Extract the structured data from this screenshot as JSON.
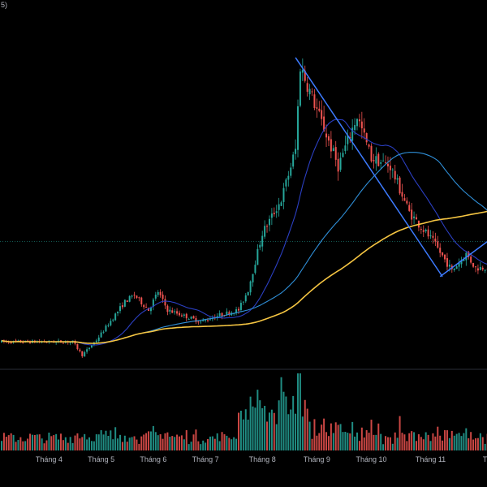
{
  "chart_data": {
    "type": "candlestick",
    "title": "",
    "corner_text": "5)",
    "x_tick_labels": [
      "Tháng 4",
      "Tháng 5",
      "Tháng 6",
      "Tháng 7",
      "Tháng 8",
      "Tháng 9",
      "Tháng 10",
      "Tháng 11",
      "Tháng"
    ],
    "grid": false,
    "colors": {
      "background": "#000000",
      "up": "#26a69a",
      "down": "#ef5350",
      "ma_short": "#2b3fc2",
      "ma_mid": "#2f8fd8",
      "ma_long": "#f5c542",
      "trendline": "#3d7bff",
      "dotted_level": "#26a69a",
      "axis_text": "#b2b5be"
    },
    "price_scale": "relative (values read off pixel grid, no price axis printed)",
    "price_segments": [
      {
        "from": 0,
        "to": 30,
        "start": 30,
        "end": 30
      },
      {
        "from": 30,
        "to": 34,
        "start": 30,
        "end": 14
      },
      {
        "from": 34,
        "to": 40,
        "start": 14,
        "end": 32
      },
      {
        "from": 40,
        "to": 52,
        "start": 32,
        "end": 78
      },
      {
        "from": 52,
        "to": 56,
        "start": 78,
        "end": 86
      },
      {
        "from": 56,
        "to": 62,
        "start": 86,
        "end": 68
      },
      {
        "from": 62,
        "to": 66,
        "start": 68,
        "end": 90
      },
      {
        "from": 66,
        "to": 70,
        "start": 90,
        "end": 68
      },
      {
        "from": 70,
        "to": 84,
        "start": 68,
        "end": 54
      },
      {
        "from": 84,
        "to": 92,
        "start": 54,
        "end": 62
      },
      {
        "from": 92,
        "to": 100,
        "start": 62,
        "end": 68
      },
      {
        "from": 100,
        "to": 104,
        "start": 68,
        "end": 92
      },
      {
        "from": 104,
        "to": 110,
        "start": 92,
        "end": 160
      },
      {
        "from": 110,
        "to": 118,
        "start": 160,
        "end": 200
      },
      {
        "from": 118,
        "to": 124,
        "start": 200,
        "end": 260
      },
      {
        "from": 124,
        "to": 126,
        "start": 260,
        "end": 360
      },
      {
        "from": 126,
        "to": 134,
        "start": 360,
        "end": 300
      },
      {
        "from": 134,
        "to": 142,
        "start": 300,
        "end": 240
      },
      {
        "from": 142,
        "to": 150,
        "start": 240,
        "end": 300
      },
      {
        "from": 150,
        "to": 156,
        "start": 300,
        "end": 250
      },
      {
        "from": 156,
        "to": 164,
        "start": 250,
        "end": 240
      },
      {
        "from": 164,
        "to": 172,
        "start": 240,
        "end": 185
      },
      {
        "from": 172,
        "to": 182,
        "start": 185,
        "end": 150
      },
      {
        "from": 182,
        "to": 190,
        "start": 150,
        "end": 115
      },
      {
        "from": 190,
        "to": 196,
        "start": 115,
        "end": 135
      },
      {
        "from": 196,
        "to": 200,
        "start": 135,
        "end": 118
      },
      {
        "from": 200,
        "to": 205,
        "start": 118,
        "end": 120
      }
    ],
    "moving_averages": [
      {
        "name": "",
        "color_key": "ma_short",
        "period": 20
      },
      {
        "name": "",
        "color_key": "ma_mid",
        "period": 60
      },
      {
        "name": "",
        "color_key": "ma_long",
        "period": 120
      }
    ],
    "trendlines": [
      {
        "from_bar": 124,
        "from_price": 370,
        "to_bar": 186,
        "to_price": 108
      },
      {
        "from_bar": 185,
        "from_price": 108,
        "to_bar": 205,
        "to_price": 150
      }
    ],
    "dotted_level": 150,
    "volume": {
      "max": 100
    }
  }
}
